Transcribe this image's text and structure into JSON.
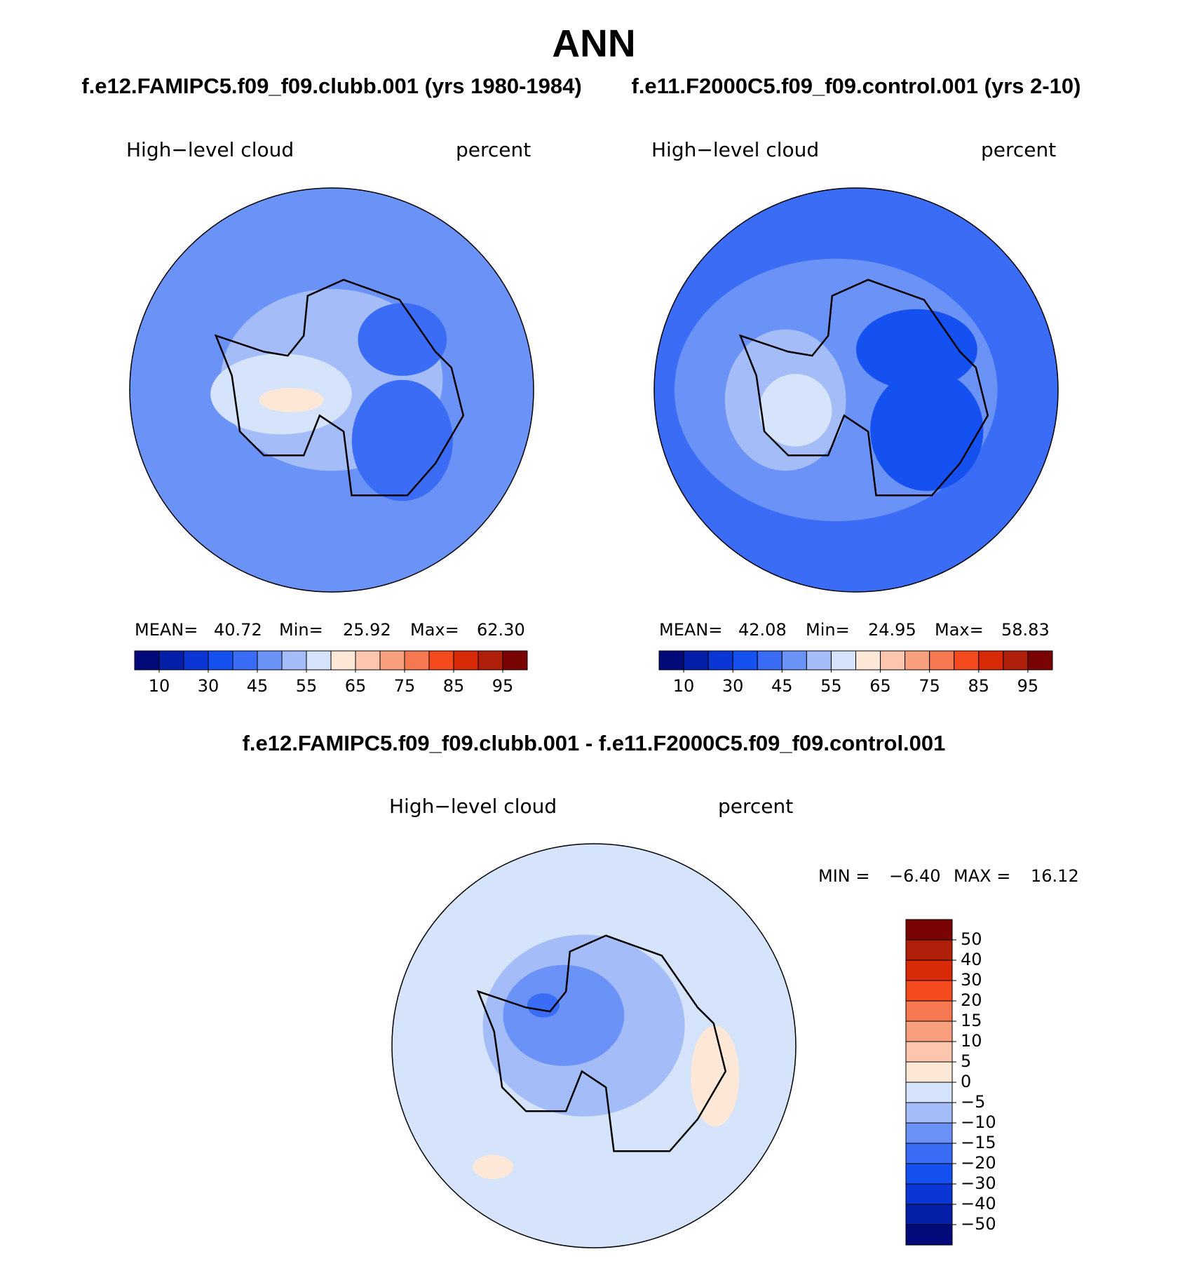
{
  "title": "ANN",
  "chart_data": [
    {
      "type": "contour",
      "title": "f.e12.FAMIPC5.f09_f09.clubb.001 (yrs 1980-1984)",
      "variable": "High−level cloud",
      "units": "percent",
      "stats": [
        {
          "name": "MEAN=",
          "value": 40.72
        },
        {
          "name": "Min=",
          "value": 25.92
        },
        {
          "name": "Max=",
          "value": 62.3,
          "label": "62.30"
        }
      ],
      "colorbar": {
        "orientation": "horizontal",
        "colors": [
          "#020a7a",
          "#0520a8",
          "#0a36d6",
          "#1550f0",
          "#3a6cf5",
          "#6b93f7",
          "#a4bdf8",
          "#d5e4fb",
          "#fde8d8",
          "#fbc6ad",
          "#f8a07e",
          "#f57850",
          "#f54a1e",
          "#d92a08",
          "#b01f0a",
          "#7a0404"
        ],
        "ticks": [
          10,
          30,
          45,
          55,
          65,
          75,
          85,
          95
        ]
      }
    },
    {
      "type": "contour",
      "title": "f.e11.F2000C5.f09_f09.control.001 (yrs 2-10)",
      "variable": "High−level cloud",
      "units": "percent",
      "stats": [
        {
          "name": "MEAN=",
          "value": 42.08
        },
        {
          "name": "Min=",
          "value": 24.95
        },
        {
          "name": "Max=",
          "value": 58.83
        }
      ],
      "colorbar": {
        "orientation": "horizontal",
        "colors": [
          "#020a7a",
          "#0520a8",
          "#0a36d6",
          "#1550f0",
          "#3a6cf5",
          "#6b93f7",
          "#a4bdf8",
          "#d5e4fb",
          "#fde8d8",
          "#fbc6ad",
          "#f8a07e",
          "#f57850",
          "#f54a1e",
          "#d92a08",
          "#b01f0a",
          "#7a0404"
        ],
        "ticks": [
          10,
          30,
          45,
          55,
          65,
          75,
          85,
          95
        ]
      }
    },
    {
      "type": "contour",
      "title": "f.e12.FAMIPC5.f09_f09.clubb.001 - f.e11.F2000C5.f09_f09.control.001",
      "variable": "High−level cloud",
      "units": "percent",
      "stats": [
        {
          "name": "MIN =",
          "value": -6.4,
          "label": "−6.40"
        },
        {
          "name": "MAX =",
          "value": 16.12
        }
      ],
      "colorbar": {
        "orientation": "vertical",
        "colors": [
          "#7a0404",
          "#b01f0a",
          "#d92a08",
          "#f54a1e",
          "#f57850",
          "#f8a07e",
          "#fbc6ad",
          "#fde8d8",
          "#d5e4fb",
          "#a4bdf8",
          "#6b93f7",
          "#3a6cf5",
          "#1550f0",
          "#0a36d6",
          "#0520a8",
          "#020a7a"
        ],
        "ticks": [
          50,
          40,
          30,
          20,
          15,
          10,
          5,
          0,
          {
            "value": -5,
            "label": "−5"
          },
          {
            "value": -10,
            "label": "−10"
          },
          {
            "value": -15,
            "label": "−15"
          },
          {
            "value": -20,
            "label": "−20"
          },
          {
            "value": -30,
            "label": "−30"
          },
          {
            "value": -40,
            "label": "−40"
          },
          {
            "value": -50,
            "label": "−50"
          }
        ]
      }
    }
  ]
}
